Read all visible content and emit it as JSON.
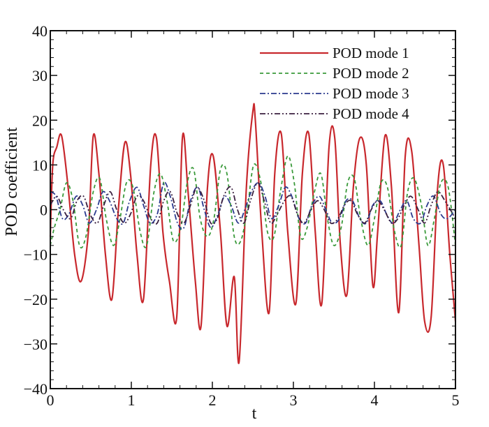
{
  "chart_data": {
    "type": "line",
    "title": "",
    "xlabel": "t",
    "ylabel": "POD coefficient",
    "xlim": [
      0,
      5
    ],
    "ylim": [
      -40,
      40
    ],
    "xticks": [
      0,
      1,
      2,
      3,
      4,
      5
    ],
    "xtick_labels": [
      "0",
      "1",
      "2",
      "3",
      "4",
      "5"
    ],
    "yticks": [
      -40,
      -30,
      -20,
      -10,
      0,
      10,
      20,
      30,
      40
    ],
    "ytick_labels": [
      "−40",
      "−30",
      "−20",
      "−10",
      "0",
      "10",
      "20",
      "30",
      "40"
    ],
    "grid": false,
    "legend_position": "top-right",
    "series": [
      {
        "name": "POD mode 1",
        "color": "#c8282d",
        "dash": "solid",
        "x": [
          0,
          0.03,
          0.08,
          0.14,
          0.22,
          0.3,
          0.38,
          0.47,
          0.53,
          0.6,
          0.68,
          0.76,
          0.84,
          0.92,
          0.99,
          1.07,
          1.15,
          1.24,
          1.31,
          1.39,
          1.47,
          1.56,
          1.63,
          1.7,
          1.79,
          1.86,
          1.94,
          2.01,
          2.1,
          2.18,
          2.27,
          2.33,
          2.42,
          2.5,
          2.53,
          2.61,
          2.7,
          2.77,
          2.85,
          2.93,
          3.03,
          3.11,
          3.19,
          3.27,
          3.35,
          3.44,
          3.51,
          3.58,
          3.66,
          3.74,
          3.82,
          3.9,
          3.98,
          4.04,
          4.13,
          4.21,
          4.3,
          4.38,
          4.46,
          4.55,
          4.62,
          4.7,
          4.78,
          4.85,
          4.93,
          5.0
        ],
        "values": [
          -6,
          10,
          14,
          16.5,
          5,
          -10,
          -16,
          -5,
          16.5,
          8,
          -10,
          -20,
          0,
          15,
          8,
          -10,
          -20,
          10,
          16,
          -5,
          -16,
          -24,
          16,
          4,
          -16,
          -26,
          5,
          12,
          -5,
          -26,
          -15,
          -34,
          5,
          22,
          20,
          -5,
          -23,
          8,
          17,
          -5,
          -21,
          8,
          17,
          -5,
          -21,
          14,
          16,
          -8,
          -19,
          5,
          16,
          10,
          -17,
          -5,
          16.5,
          5,
          -23,
          12,
          13,
          -8,
          -25,
          -24,
          5,
          10,
          -10,
          -25
        ]
      },
      {
        "name": "POD mode 2",
        "color": "#3a9a3a",
        "dash": "5,4",
        "x": [
          0,
          0.05,
          0.12,
          0.2,
          0.28,
          0.36,
          0.44,
          0.53,
          0.61,
          0.69,
          0.78,
          0.86,
          0.94,
          1.02,
          1.11,
          1.19,
          1.28,
          1.36,
          1.44,
          1.52,
          1.61,
          1.69,
          1.77,
          1.85,
          1.94,
          2.02,
          2.1,
          2.18,
          2.27,
          2.35,
          2.43,
          2.51,
          2.6,
          2.68,
          2.76,
          2.84,
          2.93,
          3.01,
          3.09,
          3.17,
          3.26,
          3.34,
          3.42,
          3.5,
          3.59,
          3.67,
          3.75,
          3.83,
          3.92,
          4.0,
          4.08,
          4.16,
          4.25,
          4.33,
          4.41,
          4.49,
          4.58,
          4.66,
          4.74,
          4.82,
          4.91,
          5.0
        ],
        "values": [
          -8,
          -4,
          0,
          6,
          2,
          -8,
          -6,
          4,
          7,
          -2,
          -8,
          -2,
          6,
          5,
          -5,
          -8,
          4,
          8,
          2,
          -7,
          -4,
          6,
          9,
          -2,
          -6,
          -2,
          9,
          8,
          -6,
          -7,
          0,
          10,
          6,
          -5,
          -6,
          4,
          12,
          6,
          -6,
          -4,
          4,
          8,
          -2,
          -8,
          -4,
          6,
          7,
          -2,
          -8,
          -2,
          6,
          5,
          -5,
          -8,
          4,
          7,
          1,
          -8,
          -2,
          6,
          5,
          -8
        ]
      },
      {
        "name": "POD mode 3",
        "color": "#2b3a8f",
        "dash": "8,3,2,3",
        "x": [
          0,
          0.07,
          0.15,
          0.23,
          0.32,
          0.4,
          0.48,
          0.57,
          0.65,
          0.73,
          0.82,
          0.9,
          0.98,
          1.07,
          1.15,
          1.23,
          1.32,
          1.4,
          1.48,
          1.57,
          1.65,
          1.73,
          1.82,
          1.9,
          1.98,
          2.07,
          2.15,
          2.23,
          2.32,
          2.4,
          2.48,
          2.57,
          2.65,
          2.73,
          2.82,
          2.9,
          2.98,
          3.07,
          3.15,
          3.23,
          3.32,
          3.4,
          3.48,
          3.57,
          3.65,
          3.73,
          3.82,
          3.9,
          3.98,
          4.07,
          4.15,
          4.23,
          4.32,
          4.4,
          4.48,
          4.57,
          4.65,
          4.73,
          4.82,
          4.9,
          5.0
        ],
        "values": [
          4,
          3,
          -2,
          -1,
          3,
          1,
          -3,
          0,
          4,
          2,
          -2,
          -3,
          2,
          5,
          1,
          -3,
          -1,
          6,
          3,
          -3,
          -4,
          2,
          5,
          0,
          -4,
          -1,
          3,
          1,
          -3,
          0,
          4,
          6,
          3,
          -2,
          1,
          5,
          3,
          -2,
          -3,
          1,
          3,
          0,
          -3,
          -2,
          2,
          2,
          -2,
          -3,
          1,
          2,
          -1,
          -3,
          0,
          2,
          -2,
          -3,
          1,
          3,
          -1,
          -2,
          0
        ]
      },
      {
        "name": "POD mode 4",
        "color": "#3a1f3f",
        "dash": "8,3,2,3,2,3",
        "x": [
          0,
          0.08,
          0.16,
          0.25,
          0.33,
          0.41,
          0.49,
          0.58,
          0.66,
          0.74,
          0.82,
          0.91,
          0.99,
          1.07,
          1.15,
          1.24,
          1.32,
          1.4,
          1.48,
          1.57,
          1.65,
          1.73,
          1.81,
          1.9,
          1.98,
          2.06,
          2.14,
          2.23,
          2.31,
          2.39,
          2.47,
          2.56,
          2.64,
          2.72,
          2.8,
          2.89,
          2.97,
          3.05,
          3.13,
          3.22,
          3.3,
          3.38,
          3.46,
          3.55,
          3.63,
          3.71,
          3.79,
          3.88,
          3.96,
          4.04,
          4.12,
          4.21,
          4.29,
          4.37,
          4.45,
          4.54,
          4.62,
          4.7,
          4.78,
          4.87,
          5.0
        ],
        "values": [
          1,
          3,
          0,
          -2,
          2,
          3,
          -1,
          -3,
          1,
          4,
          0,
          -3,
          -1,
          3,
          2,
          -2,
          -3,
          2,
          4,
          -1,
          -3,
          1,
          5,
          2,
          -3,
          -2,
          3,
          5,
          0,
          -3,
          2,
          6,
          2,
          -3,
          -1,
          2,
          3,
          -1,
          -3,
          0,
          2,
          0,
          -3,
          -2,
          1,
          2,
          -1,
          -3,
          0,
          2,
          0,
          -3,
          -2,
          1,
          3,
          0,
          -3,
          1,
          4,
          2,
          -2
        ]
      }
    ]
  }
}
